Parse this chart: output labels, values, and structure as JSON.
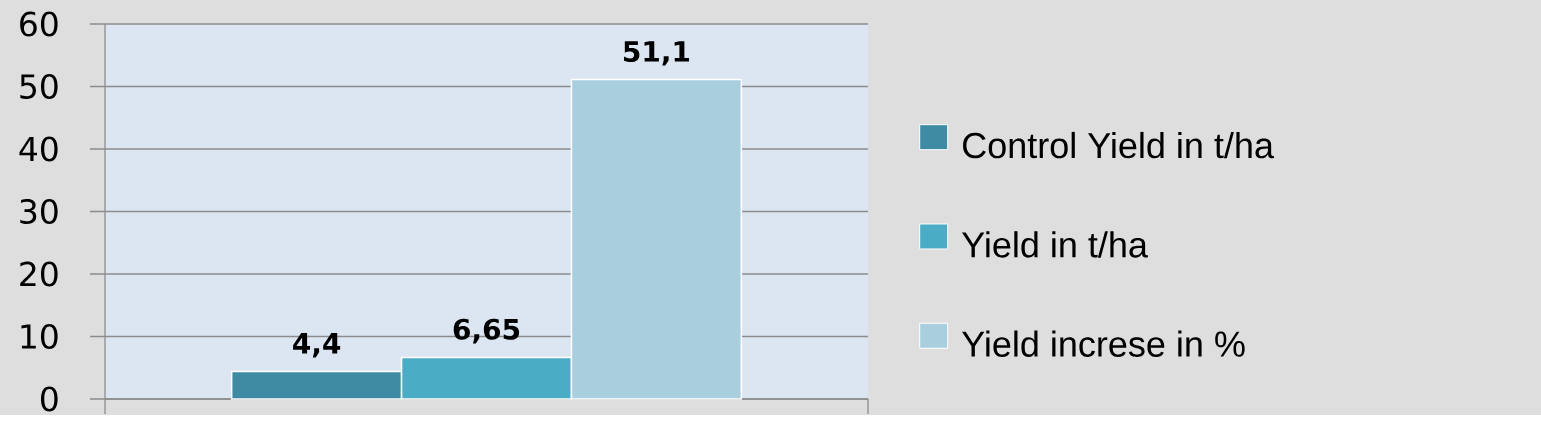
{
  "chart_data": {
    "type": "bar",
    "categories": [
      null
    ],
    "series": [
      {
        "name": "Control Yield in t/ha",
        "color": "#3e8ba3",
        "values": [
          4.4
        ],
        "value_labels": [
          "4,4"
        ]
      },
      {
        "name": "Yield in t/ha",
        "color": "#4bacc6",
        "values": [
          6.65
        ],
        "value_labels": [
          "6,65"
        ]
      },
      {
        "name": "Yield increse in %",
        "color": "#a9cfdf",
        "values": [
          51.1
        ],
        "value_labels": [
          "51,1"
        ]
      }
    ],
    "ylim": [
      0,
      60
    ],
    "yticks": [
      0,
      10,
      20,
      30,
      40,
      50,
      60
    ],
    "grid": "y",
    "legend": "right",
    "tick_labels": "y"
  }
}
